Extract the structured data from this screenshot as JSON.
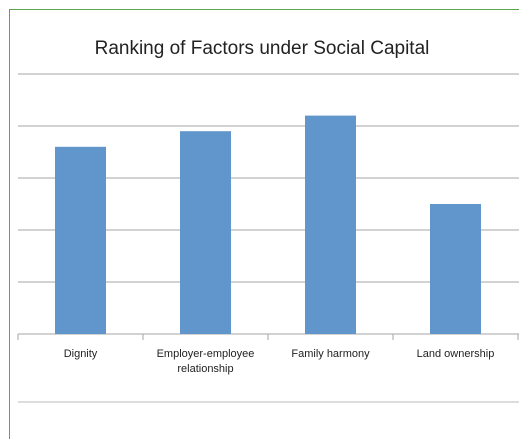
{
  "chart_data": {
    "type": "bar",
    "title": "Ranking of Factors under Social Capital",
    "categories": [
      "Dignity",
      "Employer-employee relationship",
      "Family harmony",
      "Land ownership"
    ],
    "values": [
      3.6,
      3.9,
      4.2,
      2.5
    ],
    "color": "#6096cc",
    "ylim": [
      0,
      5
    ],
    "yticks": [
      0,
      1,
      2,
      3,
      4,
      5
    ],
    "grid": true
  }
}
